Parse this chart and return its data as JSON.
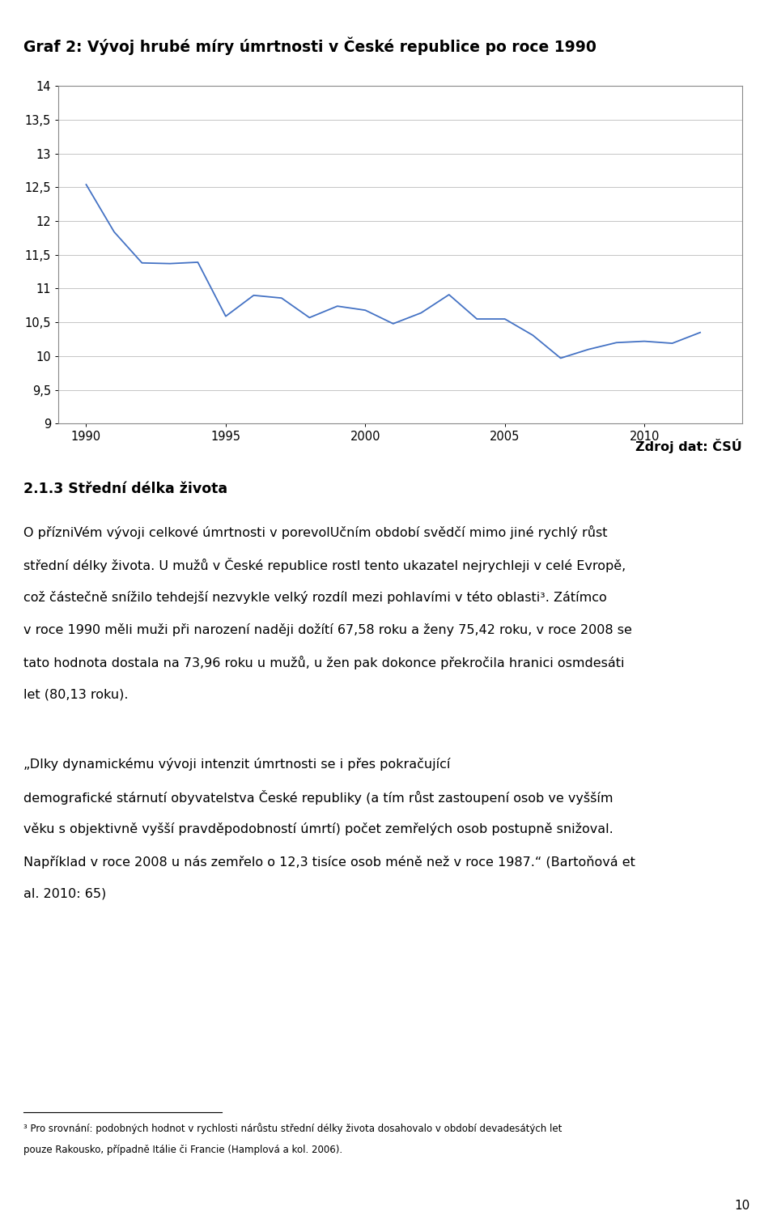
{
  "title": "Graf 2: Vývoj hrubé míry úmrtnosti v České republice po roce 1990",
  "years": [
    1990,
    1991,
    1992,
    1993,
    1994,
    1995,
    1996,
    1997,
    1998,
    1999,
    2000,
    2001,
    2002,
    2003,
    2004,
    2005,
    2006,
    2007,
    2008,
    2009,
    2010,
    2011,
    2012
  ],
  "values": [
    12.54,
    11.84,
    11.38,
    11.37,
    11.39,
    10.59,
    10.9,
    10.86,
    10.57,
    10.74,
    10.68,
    10.48,
    10.64,
    10.91,
    10.55,
    10.55,
    10.31,
    9.97,
    10.1,
    10.2,
    10.22,
    10.19,
    10.35
  ],
  "line_color": "#4472C4",
  "ylim": [
    9,
    14
  ],
  "yticks": [
    9,
    9.5,
    10,
    10.5,
    11,
    11.5,
    12,
    12.5,
    13,
    13.5,
    14
  ],
  "xticks": [
    1990,
    1995,
    2000,
    2005,
    2010
  ],
  "source_text": "Zdroj dat: ČSÚ",
  "section_title": "2.1.3 Střední délka života",
  "para1_line1": "O přízniVém vývoji celkové úmrtnosti v porevolUčním období svědčí mimo jiné rychlý růst",
  "para1_line2": "střední délky života. U mužů v České republice rostl tento ukazatel nejrychleji v celé Evropě,",
  "para1_line3": "což částečně snížilo tehdejší nezvykle velký rozdíl mezi pohlavími v této oblasti³. Zátímco",
  "para1_line4": "v roce 1990 měli muži při narození naději dožítí 67,58 roku a ženy 75,42 roku, v roce 2008 se",
  "para1_line5": "tato hodnota dostala na 73,96 roku u mužů, u žen pak dokonce překročila hranici osmdesáti",
  "para1_line6": "let (80,13 roku).",
  "para2_line1": "„DIky dynamickému vývoji intenzit úmrtnosti se i přes pokračující",
  "para2_line2": "demografické stárnutí obyvatelstva České republiky (a tím růst zastoupení osob ve vyšším",
  "para2_line3": "věku s objektivně vyšší pravděpodobností úmrtí) počet zemřelých osob postupně snižoval.",
  "para2_line4": "Například v roce 2008 u nás zemřelo o 12,3 tisíce osob méně než v roce 1987.“ (Bartoňová et",
  "para2_line5": "al. 2010: 65)",
  "footnote_line1": "³ Pro srovnání: podobných hodnot v rychlosti nárůstu střední délky života dosahovalo v období devadesátých let",
  "footnote_line2": "pouze Rakousko, případně Itálie či Francie (Hamplová a kol. 2006).",
  "page_number": "10"
}
